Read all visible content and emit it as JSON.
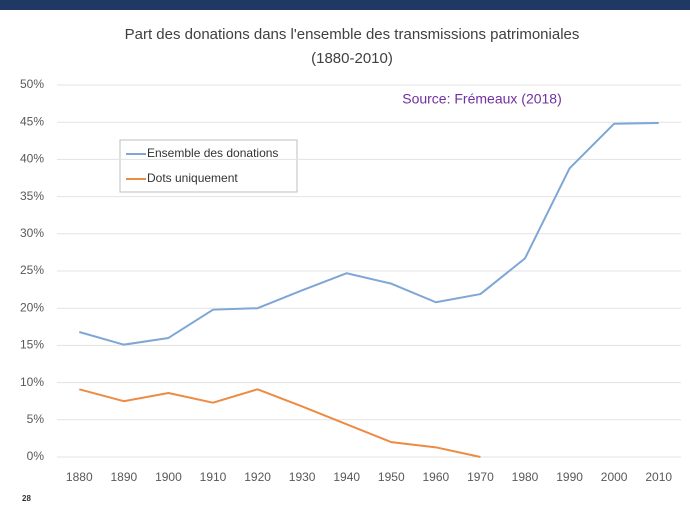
{
  "chart_data": {
    "type": "line",
    "title": "Part des donations dans l'ensemble des transmissions patrimoniales",
    "subtitle": "(1880-2010)",
    "annotation": "Source: Frémeaux (2018)",
    "categories": [
      "1880",
      "1890",
      "1900",
      "1910",
      "1920",
      "1930",
      "1940",
      "1950",
      "1960",
      "1970",
      "1980",
      "1990",
      "2000",
      "2010"
    ],
    "series": [
      {
        "name": "Ensemble des donations",
        "color": "#7ea6d6",
        "values": [
          16.8,
          15.1,
          16.0,
          19.8,
          20.0,
          22.4,
          24.7,
          23.3,
          20.8,
          21.9,
          26.7,
          38.8,
          44.8,
          44.9
        ]
      },
      {
        "name": "Dots uniquement",
        "color": "#ed8b43",
        "values": [
          9.1,
          7.5,
          8.6,
          7.3,
          9.1,
          6.8,
          4.4,
          2.0,
          1.3,
          0,
          null,
          null,
          null,
          null
        ]
      }
    ],
    "ylim": [
      0,
      50
    ],
    "yticks": [
      {
        "value": 0,
        "label": "0%"
      },
      {
        "value": 5,
        "label": "5%"
      },
      {
        "value": 10,
        "label": "10%"
      },
      {
        "value": 15,
        "label": "15%"
      },
      {
        "value": 20,
        "label": "20%"
      },
      {
        "value": 25,
        "label": "25%"
      },
      {
        "value": 30,
        "label": "30%"
      },
      {
        "value": 35,
        "label": "35%"
      },
      {
        "value": 40,
        "label": "40%"
      },
      {
        "value": 45,
        "label": "45%"
      },
      {
        "value": 50,
        "label": "50%"
      }
    ],
    "grid": true,
    "legend": "upper-left"
  },
  "page_number": "28"
}
